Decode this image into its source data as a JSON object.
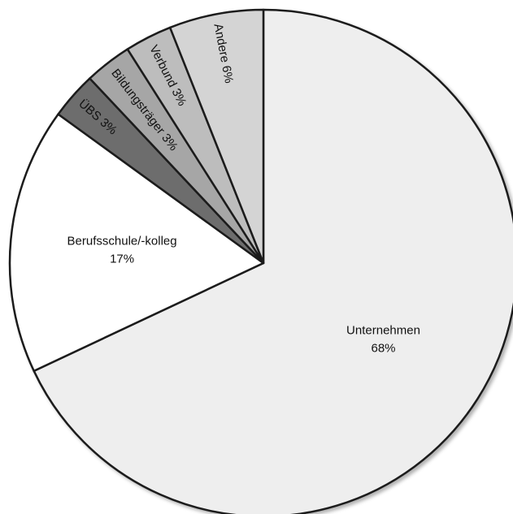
{
  "chart_data": {
    "type": "pie",
    "title": "",
    "legend": "none",
    "slices": [
      {
        "label": "Unternehmen",
        "value": 68,
        "display": "68%",
        "color": "#eeeeee",
        "label_mode": "stacked"
      },
      {
        "label": "Berufsschule/-kolleg",
        "value": 17,
        "display": "17%",
        "color": "#ffffff",
        "label_mode": "stacked"
      },
      {
        "label": "ÜBS",
        "value": 3,
        "display": "3%",
        "color": "#6d6d6d",
        "label_mode": "radial"
      },
      {
        "label": "Bildungsträger",
        "value": 3,
        "display": "3%",
        "color": "#a6a6a6",
        "label_mode": "radial"
      },
      {
        "label": "Verbund",
        "value": 3,
        "display": "3%",
        "color": "#bdbdbd",
        "label_mode": "radial"
      },
      {
        "label": "Andere",
        "value": 6,
        "display": "6%",
        "color": "#d4d4d4",
        "label_mode": "radial"
      }
    ]
  }
}
